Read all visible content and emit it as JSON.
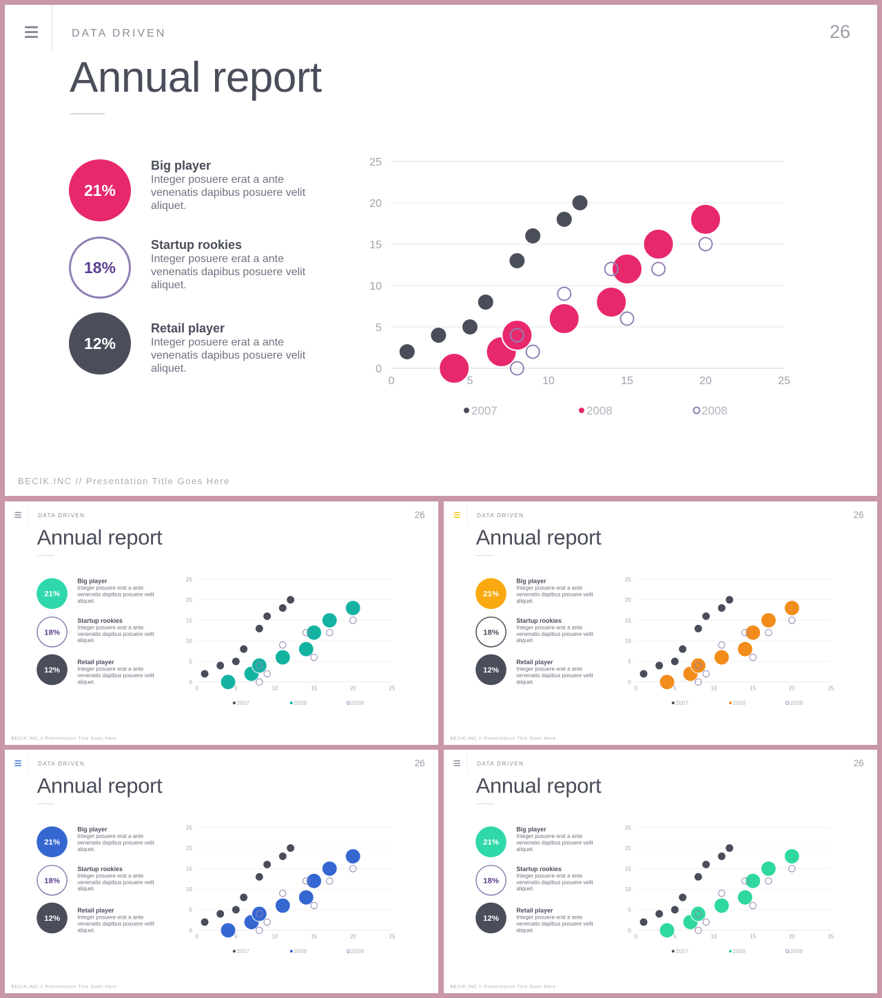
{
  "slides": [
    {
      "id": "main",
      "accent": "#e8286d",
      "circle1_color": "#e8286d",
      "circle2_border": "#9180b4",
      "circle2_text": "#5b3f8f",
      "menu_color": "#8a8d99"
    },
    {
      "id": "teal",
      "accent": "#14b3a1",
      "circle1_color": "#2fd8ac",
      "circle2_border": "#9180b4",
      "circle2_text": "#5b3f8f",
      "menu_color": "#8a8d99"
    },
    {
      "id": "orange",
      "accent": "#f28c1b",
      "circle1_color": "#f9a90f",
      "circle2_border": "#4a4d5a",
      "circle2_text": "#4a4d5a",
      "menu_color": "#f4c61a"
    },
    {
      "id": "blue",
      "accent": "#3567d1",
      "circle1_color": "#3567d1",
      "circle2_border": "#9180b4",
      "circle2_text": "#5b3f8f",
      "menu_color": "#3f70d4"
    },
    {
      "id": "green",
      "accent": "#2fd89e",
      "circle1_color": "#2fd8a8",
      "circle2_border": "#9180b4",
      "circle2_text": "#5b3f8f",
      "menu_color": "#8a8d99"
    }
  ],
  "header": {
    "section": "DATA DRIVEN",
    "page": "26",
    "title": "Annual report"
  },
  "stats": [
    {
      "value": "21%",
      "heading": "Big player",
      "body": "Integer posuere erat a ante venenatis dapibus posuere velit aliquet."
    },
    {
      "value": "18%",
      "heading": "Startup rookies",
      "body": "Integer posuere erat a ante venenatis dapibus posuere velit aliquet."
    },
    {
      "value": "12%",
      "heading": "Retail player",
      "body": "Integer posuere erat a ante venenatis dapibus posuere velit aliquet."
    }
  ],
  "footer": "BECIK.INC  //  Presentation  Title  Goes  Here",
  "colors": {
    "dark": "#4a4d5a",
    "outline": "#9180b4",
    "grid": "#e4e4e4",
    "tick": "#a0a2aa"
  },
  "chart_data": {
    "type": "scatter",
    "xlim": [
      0,
      25
    ],
    "ylim": [
      0,
      25
    ],
    "x_ticks": [
      0,
      5,
      10,
      15,
      20,
      25
    ],
    "y_ticks": [
      0,
      5,
      10,
      15,
      20,
      25
    ],
    "grid": true,
    "legend_position": "bottom",
    "series": [
      {
        "name": "2007",
        "style": "dark-small",
        "points": [
          [
            1,
            2
          ],
          [
            3,
            4
          ],
          [
            5,
            5
          ],
          [
            6,
            8
          ],
          [
            8,
            13
          ],
          [
            9,
            16
          ],
          [
            11,
            18
          ],
          [
            12,
            20
          ]
        ]
      },
      {
        "name": "2008",
        "style": "accent-bubble",
        "points": [
          [
            4,
            0
          ],
          [
            7,
            2
          ],
          [
            8,
            4
          ],
          [
            11,
            6
          ],
          [
            14,
            8
          ],
          [
            15,
            12
          ],
          [
            17,
            15
          ],
          [
            20,
            18
          ]
        ]
      },
      {
        "name": "2008",
        "style": "outline",
        "points": [
          [
            8,
            0
          ],
          [
            9,
            2
          ],
          [
            8,
            4
          ],
          [
            15,
            6
          ],
          [
            11,
            9
          ],
          [
            14,
            12
          ],
          [
            17,
            12
          ],
          [
            20,
            15
          ]
        ]
      }
    ]
  }
}
